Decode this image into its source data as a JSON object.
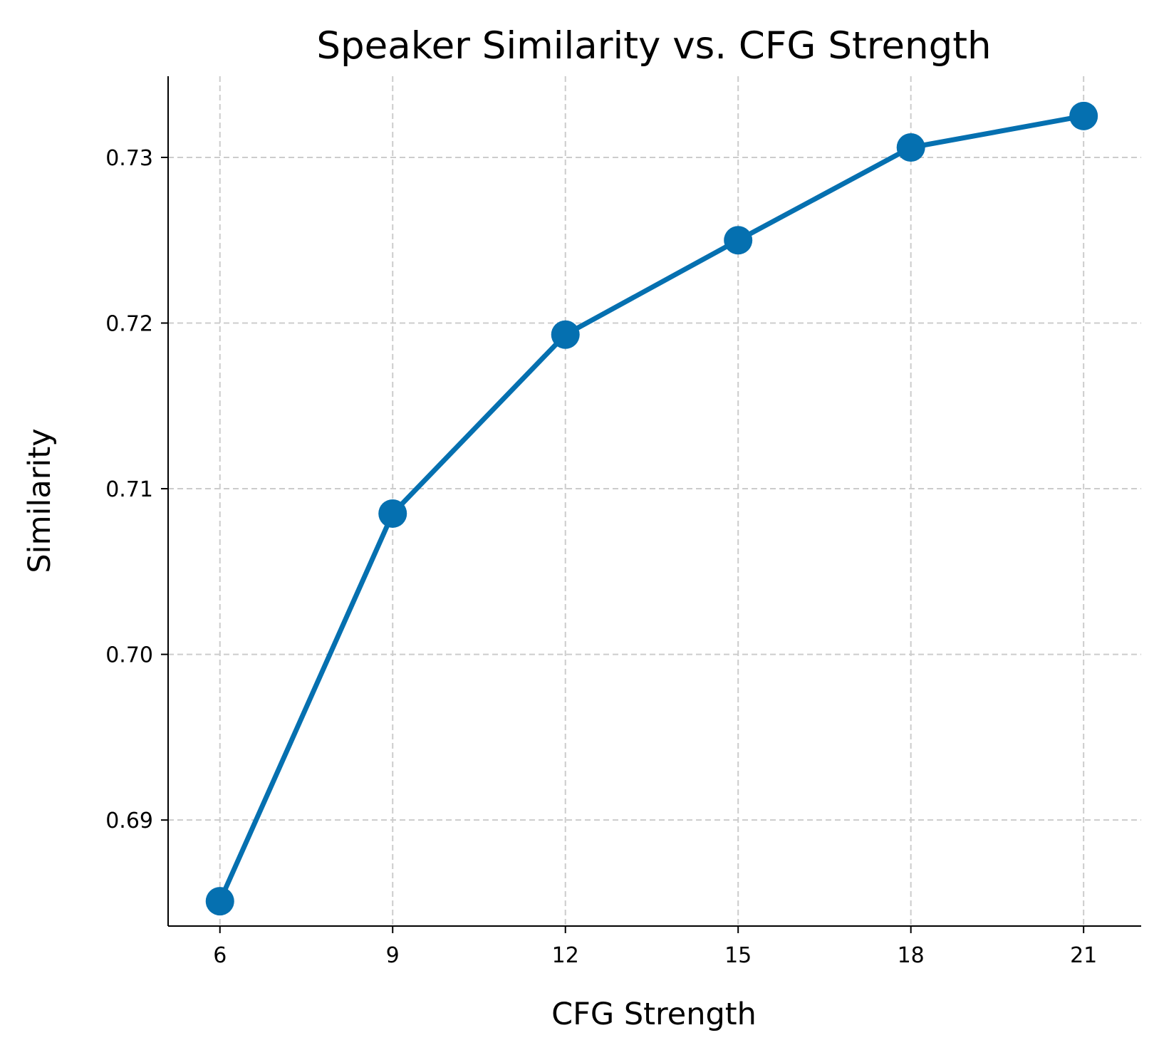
{
  "chart_data": {
    "type": "line",
    "title": "Speaker Similarity vs. CFG Strength",
    "xlabel": "CFG Strength",
    "ylabel": "Similarity",
    "x": [
      6,
      9,
      12,
      15,
      18,
      21
    ],
    "x_tick_labels": [
      "6",
      "9",
      "12",
      "15",
      "18",
      "21"
    ],
    "y_ticks": [
      0.69,
      0.7,
      0.71,
      0.72,
      0.73
    ],
    "y_tick_labels": [
      "0.69",
      "0.70",
      "0.71",
      "0.72",
      "0.73"
    ],
    "xlim": [
      5.1,
      22.0
    ],
    "ylim": [
      0.6836,
      0.7349
    ],
    "grid": true,
    "legend": "none",
    "series": [
      {
        "values": [
          0.6851,
          0.7085,
          0.7193,
          0.725,
          0.7306,
          0.7325
        ],
        "color": "#0570b0",
        "marker": "circle"
      }
    ]
  }
}
